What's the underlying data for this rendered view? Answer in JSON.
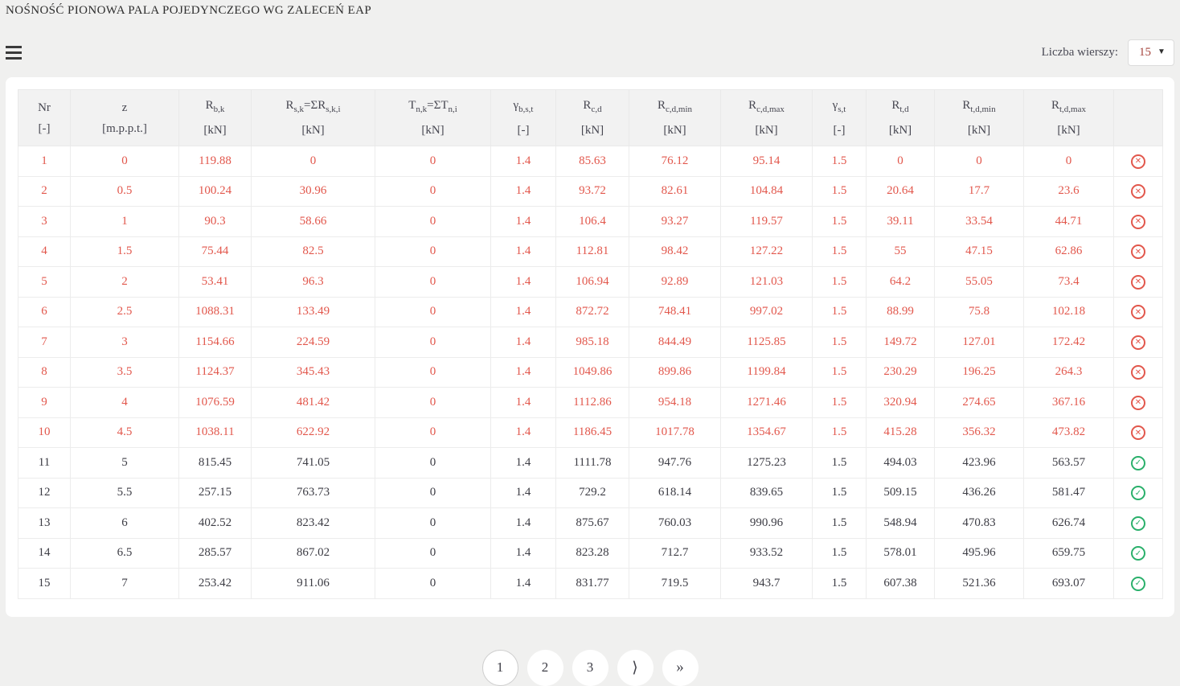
{
  "title": "NOŚNOŚĆ PIONOWA PALA POJEDYNCZEGO WG ZALECEŃ EAP",
  "toolbar": {
    "rows_label": "Liczba wierszy:",
    "rows_value": "15"
  },
  "colors": {
    "fail_red": "#e2574c",
    "pass_green": "#2ab06b",
    "header_text": "#474751",
    "page_background": "#f0f0ef"
  },
  "table": {
    "fail_glyph": "✕",
    "pass_glyph": "✓",
    "headers": [
      {
        "segments": [
          {
            "t": "Nr"
          }
        ],
        "unit": "[-]"
      },
      {
        "segments": [
          {
            "t": "z"
          }
        ],
        "unit": "[m.p.p.t.]"
      },
      {
        "segments": [
          {
            "t": "R"
          },
          {
            "s": "b,k"
          }
        ],
        "unit": "[kN]"
      },
      {
        "segments": [
          {
            "t": "R"
          },
          {
            "s": "s,k"
          },
          {
            "t": "=ΣR"
          },
          {
            "s": "s,k,i"
          }
        ],
        "unit": "[kN]"
      },
      {
        "segments": [
          {
            "t": "T"
          },
          {
            "s": "n,k"
          },
          {
            "t": "=ΣT"
          },
          {
            "s": "n,i"
          }
        ],
        "unit": "[kN]"
      },
      {
        "segments": [
          {
            "t": "γ"
          },
          {
            "s": "b,s,t"
          }
        ],
        "unit": "[-]"
      },
      {
        "segments": [
          {
            "t": "R"
          },
          {
            "s": "c,d"
          }
        ],
        "unit": "[kN]"
      },
      {
        "segments": [
          {
            "t": "R"
          },
          {
            "s": "c,d,min"
          }
        ],
        "unit": "[kN]"
      },
      {
        "segments": [
          {
            "t": "R"
          },
          {
            "s": "c,d,max"
          }
        ],
        "unit": "[kN]"
      },
      {
        "segments": [
          {
            "t": "γ"
          },
          {
            "s": "s,t"
          }
        ],
        "unit": "[-]"
      },
      {
        "segments": [
          {
            "t": "R"
          },
          {
            "s": "t,d"
          }
        ],
        "unit": "[kN]"
      },
      {
        "segments": [
          {
            "t": "R"
          },
          {
            "s": "t,d,min"
          }
        ],
        "unit": "[kN]"
      },
      {
        "segments": [
          {
            "t": "R"
          },
          {
            "s": "t,d,max"
          }
        ],
        "unit": "[kN]"
      },
      {
        "segments": [],
        "unit": ""
      }
    ],
    "rows": [
      {
        "values": [
          "1",
          "0",
          "119.88",
          "0",
          "0",
          "1.4",
          "85.63",
          "76.12",
          "95.14",
          "1.5",
          "0",
          "0",
          "0"
        ],
        "status": "fail"
      },
      {
        "values": [
          "2",
          "0.5",
          "100.24",
          "30.96",
          "0",
          "1.4",
          "93.72",
          "82.61",
          "104.84",
          "1.5",
          "20.64",
          "17.7",
          "23.6"
        ],
        "status": "fail"
      },
      {
        "values": [
          "3",
          "1",
          "90.3",
          "58.66",
          "0",
          "1.4",
          "106.4",
          "93.27",
          "119.57",
          "1.5",
          "39.11",
          "33.54",
          "44.71"
        ],
        "status": "fail"
      },
      {
        "values": [
          "4",
          "1.5",
          "75.44",
          "82.5",
          "0",
          "1.4",
          "112.81",
          "98.42",
          "127.22",
          "1.5",
          "55",
          "47.15",
          "62.86"
        ],
        "status": "fail"
      },
      {
        "values": [
          "5",
          "2",
          "53.41",
          "96.3",
          "0",
          "1.4",
          "106.94",
          "92.89",
          "121.03",
          "1.5",
          "64.2",
          "55.05",
          "73.4"
        ],
        "status": "fail"
      },
      {
        "values": [
          "6",
          "2.5",
          "1088.31",
          "133.49",
          "0",
          "1.4",
          "872.72",
          "748.41",
          "997.02",
          "1.5",
          "88.99",
          "75.8",
          "102.18"
        ],
        "status": "fail"
      },
      {
        "values": [
          "7",
          "3",
          "1154.66",
          "224.59",
          "0",
          "1.4",
          "985.18",
          "844.49",
          "1125.85",
          "1.5",
          "149.72",
          "127.01",
          "172.42"
        ],
        "status": "fail"
      },
      {
        "values": [
          "8",
          "3.5",
          "1124.37",
          "345.43",
          "0",
          "1.4",
          "1049.86",
          "899.86",
          "1199.84",
          "1.5",
          "230.29",
          "196.25",
          "264.3"
        ],
        "status": "fail"
      },
      {
        "values": [
          "9",
          "4",
          "1076.59",
          "481.42",
          "0",
          "1.4",
          "1112.86",
          "954.18",
          "1271.46",
          "1.5",
          "320.94",
          "274.65",
          "367.16"
        ],
        "status": "fail"
      },
      {
        "values": [
          "10",
          "4.5",
          "1038.11",
          "622.92",
          "0",
          "1.4",
          "1186.45",
          "1017.78",
          "1354.67",
          "1.5",
          "415.28",
          "356.32",
          "473.82"
        ],
        "status": "fail"
      },
      {
        "values": [
          "11",
          "5",
          "815.45",
          "741.05",
          "0",
          "1.4",
          "1111.78",
          "947.76",
          "1275.23",
          "1.5",
          "494.03",
          "423.96",
          "563.57"
        ],
        "status": "pass"
      },
      {
        "values": [
          "12",
          "5.5",
          "257.15",
          "763.73",
          "0",
          "1.4",
          "729.2",
          "618.14",
          "839.65",
          "1.5",
          "509.15",
          "436.26",
          "581.47"
        ],
        "status": "pass"
      },
      {
        "values": [
          "13",
          "6",
          "402.52",
          "823.42",
          "0",
          "1.4",
          "875.67",
          "760.03",
          "990.96",
          "1.5",
          "548.94",
          "470.83",
          "626.74"
        ],
        "status": "pass"
      },
      {
        "values": [
          "14",
          "6.5",
          "285.57",
          "867.02",
          "0",
          "1.4",
          "823.28",
          "712.7",
          "933.52",
          "1.5",
          "578.01",
          "495.96",
          "659.75"
        ],
        "status": "pass"
      },
      {
        "values": [
          "15",
          "7",
          "253.42",
          "911.06",
          "0",
          "1.4",
          "831.77",
          "719.5",
          "943.7",
          "1.5",
          "607.38",
          "521.36",
          "693.07"
        ],
        "status": "pass"
      }
    ]
  },
  "pagination": {
    "pages": [
      "1",
      "2",
      "3"
    ],
    "current": "1",
    "next_label": "⟩",
    "last_label": "»"
  }
}
